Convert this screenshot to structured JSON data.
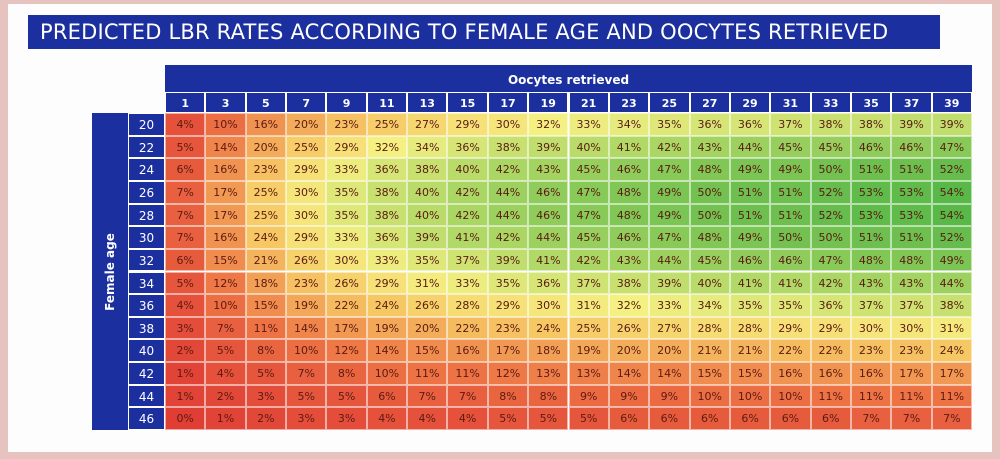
{
  "header": {
    "title": "PREDICTED LBR RATES ACCORDING TO FEMALE AGE AND OOCYTES RETRIEVED"
  },
  "table": {
    "column_header": "Oocytes retrieved",
    "row_header": "Female age",
    "columns": [
      "1",
      "3",
      "5",
      "7",
      "9",
      "11",
      "13",
      "15",
      "17",
      "19",
      "21",
      "23",
      "25",
      "27",
      "29",
      "31",
      "33",
      "35",
      "37",
      "39"
    ],
    "rows": [
      {
        "label": "20",
        "cells": [
          "4%",
          "10%",
          "16%",
          "20%",
          "23%",
          "25%",
          "27%",
          "29%",
          "30%",
          "32%",
          "33%",
          "34%",
          "35%",
          "36%",
          "36%",
          "37%",
          "38%",
          "38%",
          "39%",
          "39%"
        ]
      },
      {
        "label": "22",
        "cells": [
          "5%",
          "14%",
          "20%",
          "25%",
          "29%",
          "32%",
          "34%",
          "36%",
          "38%",
          "39%",
          "40%",
          "41%",
          "42%",
          "43%",
          "44%",
          "45%",
          "45%",
          "46%",
          "46%",
          "47%"
        ]
      },
      {
        "label": "24",
        "cells": [
          "6%",
          "16%",
          "23%",
          "29%",
          "33%",
          "36%",
          "38%",
          "40%",
          "42%",
          "43%",
          "45%",
          "46%",
          "47%",
          "48%",
          "49%",
          "49%",
          "50%",
          "51%",
          "51%",
          "52%"
        ]
      },
      {
        "label": "26",
        "cells": [
          "7%",
          "17%",
          "25%",
          "30%",
          "35%",
          "38%",
          "40%",
          "42%",
          "44%",
          "46%",
          "47%",
          "48%",
          "49%",
          "50%",
          "51%",
          "51%",
          "52%",
          "53%",
          "53%",
          "54%"
        ]
      },
      {
        "label": "28",
        "cells": [
          "7%",
          "17%",
          "25%",
          "30%",
          "35%",
          "38%",
          "40%",
          "42%",
          "44%",
          "46%",
          "47%",
          "48%",
          "49%",
          "50%",
          "51%",
          "51%",
          "52%",
          "53%",
          "53%",
          "54%"
        ]
      },
      {
        "label": "30",
        "cells": [
          "7%",
          "16%",
          "24%",
          "29%",
          "33%",
          "36%",
          "39%",
          "41%",
          "42%",
          "44%",
          "45%",
          "46%",
          "47%",
          "48%",
          "49%",
          "50%",
          "50%",
          "51%",
          "51%",
          "52%"
        ]
      },
      {
        "label": "32",
        "cells": [
          "6%",
          "15%",
          "21%",
          "26%",
          "30%",
          "33%",
          "35%",
          "37%",
          "39%",
          "41%",
          "42%",
          "43%",
          "44%",
          "45%",
          "46%",
          "46%",
          "47%",
          "48%",
          "48%",
          "49%"
        ]
      },
      {
        "label": "34",
        "cells": [
          "5%",
          "12%",
          "18%",
          "23%",
          "26%",
          "29%",
          "31%",
          "33%",
          "35%",
          "36%",
          "37%",
          "38%",
          "39%",
          "40%",
          "41%",
          "41%",
          "42%",
          "43%",
          "43%",
          "44%"
        ]
      },
      {
        "label": "36",
        "cells": [
          "4%",
          "10%",
          "15%",
          "19%",
          "22%",
          "24%",
          "26%",
          "28%",
          "29%",
          "30%",
          "31%",
          "32%",
          "33%",
          "34%",
          "35%",
          "35%",
          "36%",
          "37%",
          "37%",
          "38%"
        ]
      },
      {
        "label": "38",
        "cells": [
          "3%",
          "7%",
          "11%",
          "14%",
          "17%",
          "19%",
          "20%",
          "22%",
          "23%",
          "24%",
          "25%",
          "26%",
          "27%",
          "28%",
          "28%",
          "29%",
          "29%",
          "30%",
          "30%",
          "31%"
        ]
      },
      {
        "label": "40",
        "cells": [
          "2%",
          "5%",
          "8%",
          "10%",
          "12%",
          "14%",
          "15%",
          "16%",
          "17%",
          "18%",
          "19%",
          "20%",
          "20%",
          "21%",
          "21%",
          "22%",
          "22%",
          "23%",
          "23%",
          "24%"
        ]
      },
      {
        "label": "42",
        "cells": [
          "1%",
          "4%",
          "5%",
          "7%",
          "8%",
          "10%",
          "11%",
          "11%",
          "12%",
          "13%",
          "13%",
          "14%",
          "14%",
          "15%",
          "15%",
          "16%",
          "16%",
          "16%",
          "17%",
          "17%"
        ]
      },
      {
        "label": "44",
        "cells": [
          "1%",
          "2%",
          "3%",
          "5%",
          "5%",
          "6%",
          "7%",
          "7%",
          "8%",
          "8%",
          "9%",
          "9%",
          "9%",
          "10%",
          "10%",
          "10%",
          "11%",
          "11%",
          "11%",
          "11%"
        ]
      },
      {
        "label": "46",
        "cells": [
          "0%",
          "1%",
          "2%",
          "3%",
          "3%",
          "4%",
          "4%",
          "4%",
          "5%",
          "5%",
          "5%",
          "6%",
          "6%",
          "6%",
          "6%",
          "6%",
          "6%",
          "7%",
          "7%",
          "7%"
        ]
      }
    ]
  }
}
